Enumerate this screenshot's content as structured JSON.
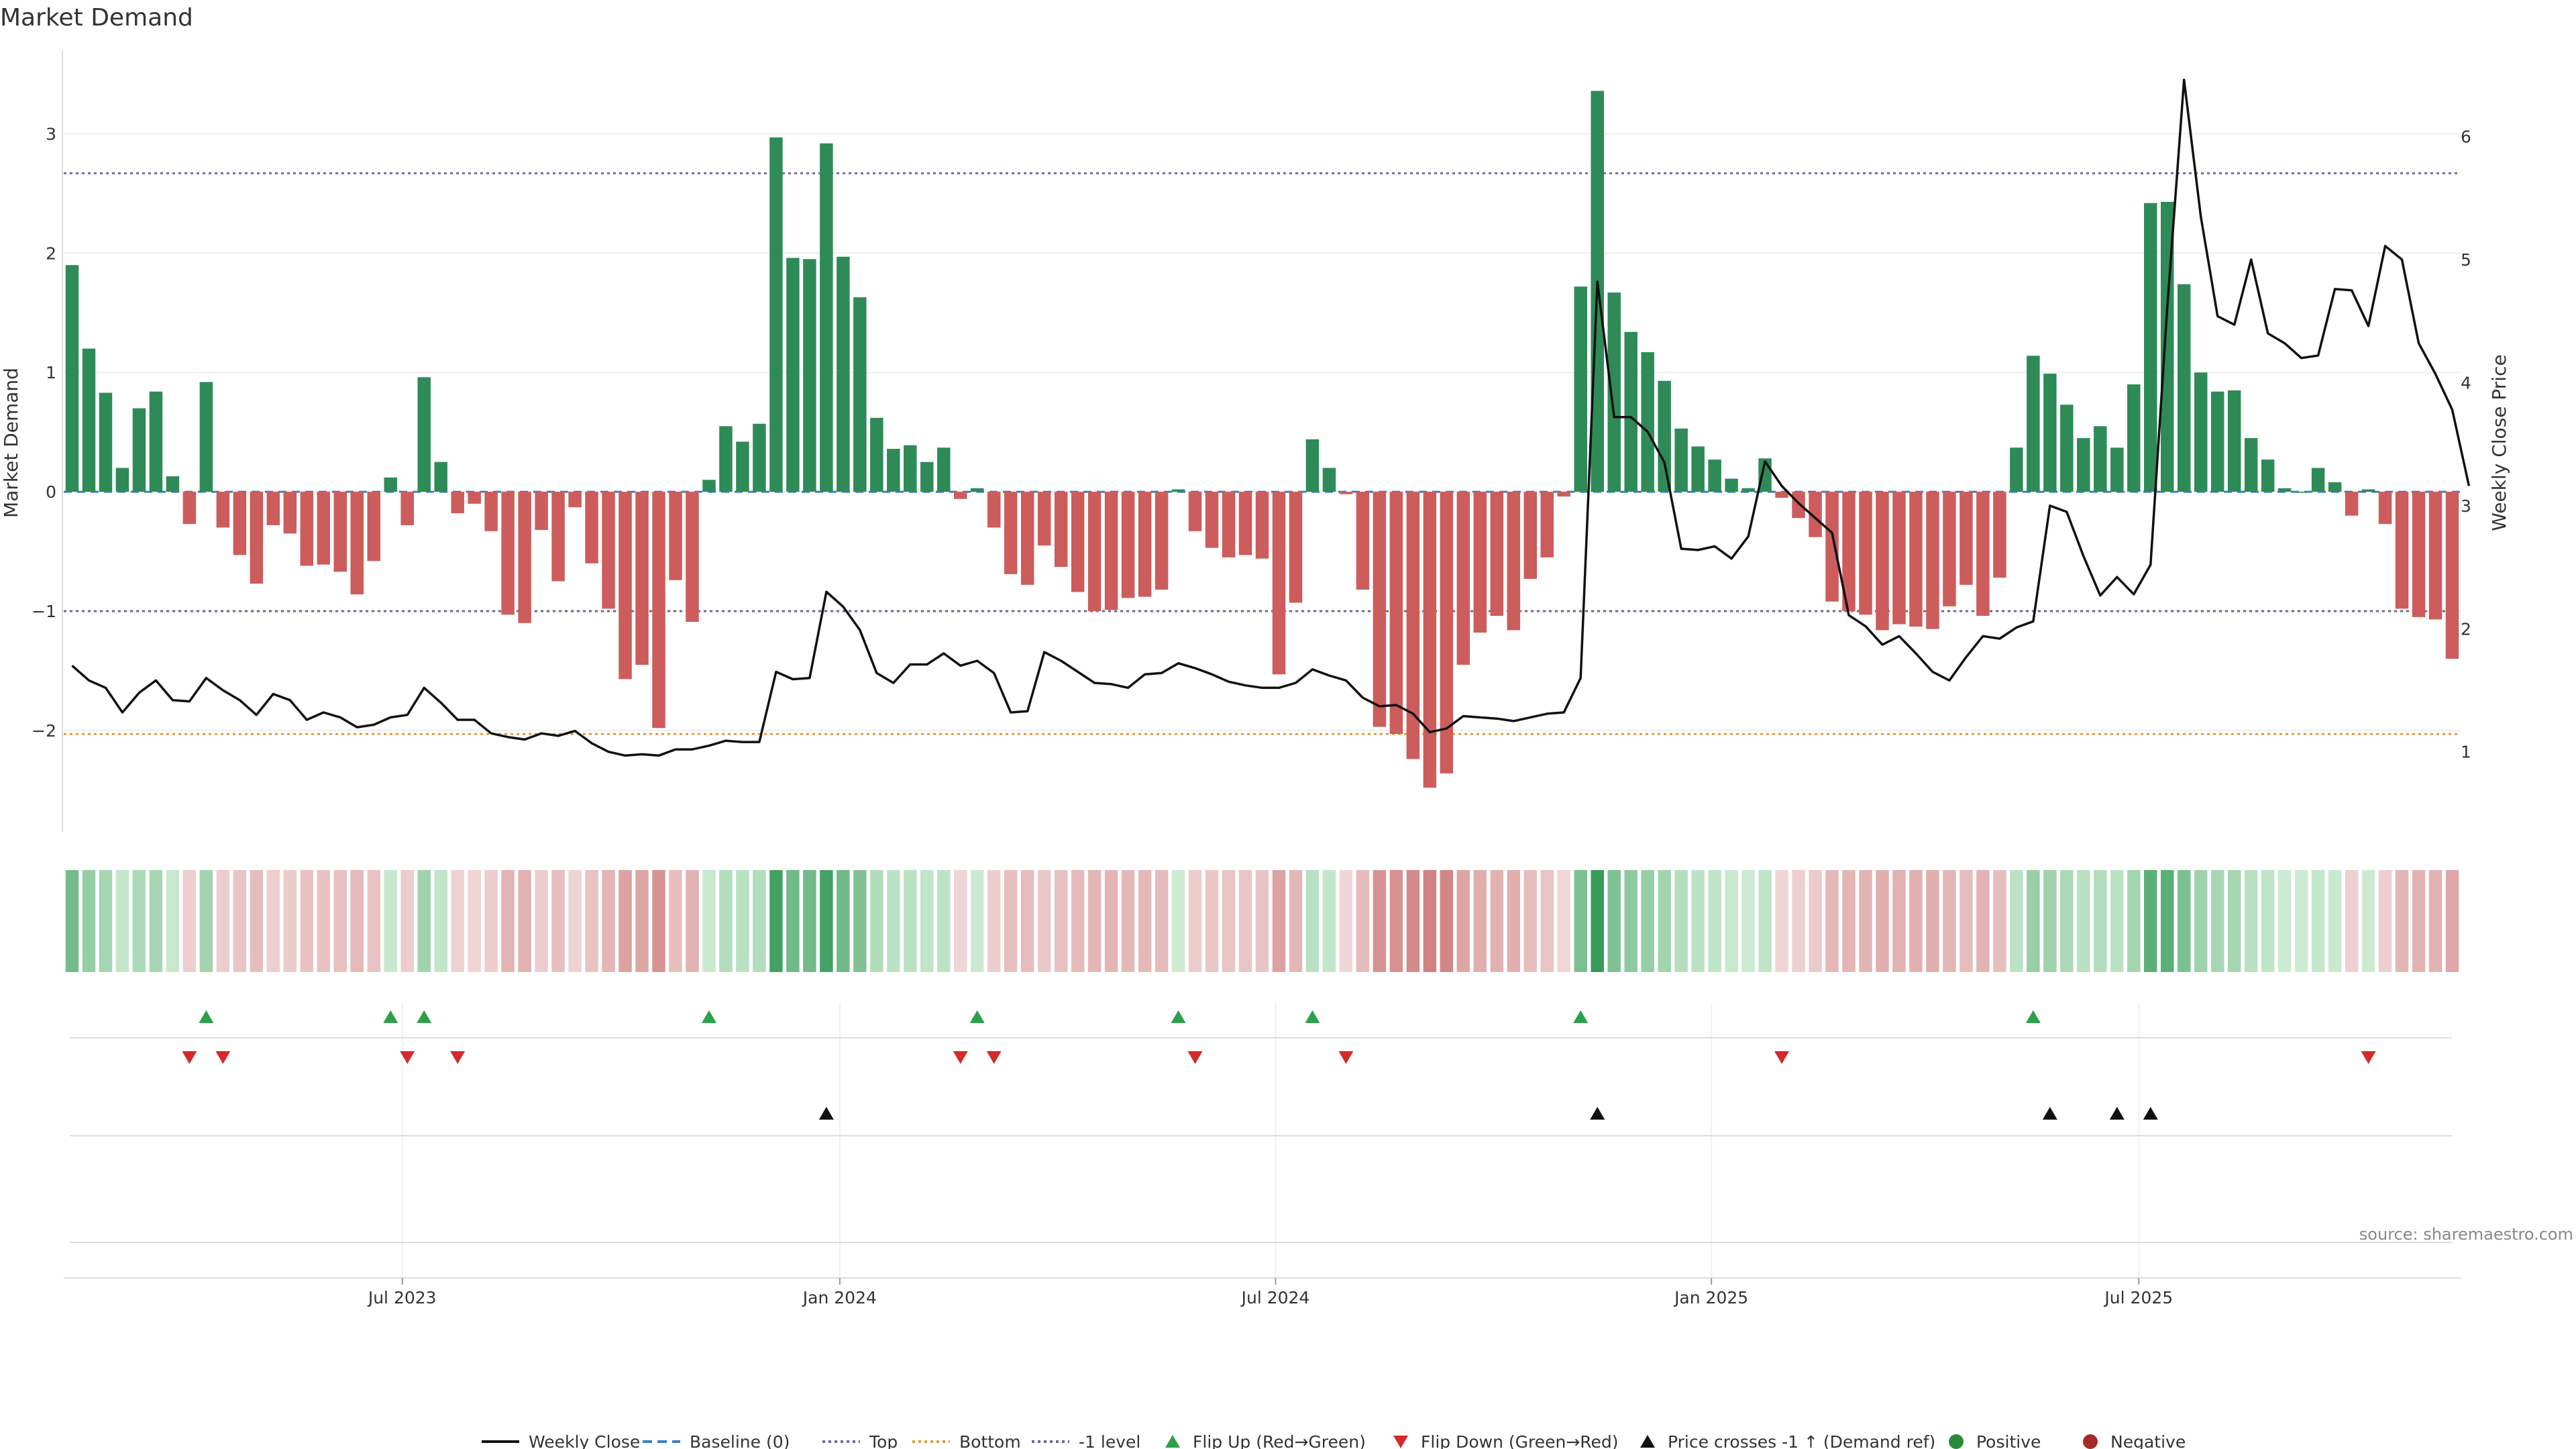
{
  "chart_data": {
    "type": "bar",
    "title": "Market Demand",
    "ylabel_left": "Market Demand",
    "ylabel_right": "Weekly Close Price",
    "ylim_left": [
      -2.85,
      3.7
    ],
    "ylim_right": [
      0.35,
      6.7
    ],
    "left_ticks": [
      "−2",
      "−1",
      "0",
      "1",
      "2",
      "3"
    ],
    "right_ticks": [
      "1",
      "2",
      "3",
      "4",
      "5",
      "6"
    ],
    "x_tick_labels": [
      "Jul 2023",
      "Jan 2024",
      "Jul 2024",
      "Jan 2025",
      "Jul 2025"
    ],
    "reference_lines": {
      "top": 2.67,
      "bottom": -2.03,
      "minus_one_level": -1.0,
      "baseline": 0
    },
    "series": [
      {
        "name": "Market Demand",
        "values": [
          1.9,
          1.2,
          0.83,
          0.2,
          0.7,
          0.84,
          0.13,
          -0.27,
          0.92,
          -0.3,
          -0.53,
          -0.77,
          -0.28,
          -0.35,
          -0.62,
          -0.61,
          -0.67,
          -0.86,
          -0.58,
          0.12,
          -0.28,
          0.96,
          0.25,
          -0.18,
          -0.1,
          -0.33,
          -1.03,
          -1.1,
          -0.32,
          -0.75,
          -0.13,
          -0.6,
          -0.98,
          -1.57,
          -1.45,
          -1.98,
          -0.74,
          -1.09,
          0.1,
          0.55,
          0.42,
          0.57,
          2.97,
          1.96,
          1.95,
          2.92,
          1.97,
          1.63,
          0.62,
          0.36,
          0.39,
          0.25,
          0.37,
          -0.06,
          0.03,
          -0.3,
          -0.69,
          -0.78,
          -0.45,
          -0.63,
          -0.84,
          -1.0,
          -0.99,
          -0.89,
          -0.88,
          -0.82,
          0.02,
          -0.33,
          -0.47,
          -0.55,
          -0.53,
          -0.56,
          -1.53,
          -0.93,
          0.44,
          0.2,
          -0.02,
          -0.82,
          -1.97,
          -2.03,
          -2.24,
          -2.48,
          -2.36,
          -1.45,
          -1.18,
          -1.04,
          -1.16,
          -0.73,
          -0.55,
          -0.04,
          1.72,
          3.36,
          1.67,
          1.34,
          1.17,
          0.93,
          0.53,
          0.38,
          0.27,
          0.11,
          0.03,
          0.28,
          -0.05,
          -0.22,
          -0.38,
          -0.92,
          -1.0,
          -1.03,
          -1.16,
          -1.11,
          -1.13,
          -1.15,
          -0.96,
          -0.78,
          -1.04,
          -0.72,
          0.37,
          1.14,
          0.99,
          0.73,
          0.45,
          0.55,
          0.37,
          0.9,
          2.42,
          2.43,
          1.74,
          1.0,
          0.84,
          0.85,
          0.45,
          0.27,
          0.03,
          0.0,
          0.2,
          0.08,
          -0.2,
          0.02,
          -0.27,
          -0.98,
          -1.05,
          -1.07,
          -1.4
        ]
      },
      {
        "name": "Weekly Close",
        "values": [
          1.7,
          1.58,
          1.52,
          1.32,
          1.48,
          1.58,
          1.42,
          1.41,
          1.6,
          1.5,
          1.42,
          1.3,
          1.47,
          1.42,
          1.26,
          1.32,
          1.28,
          1.2,
          1.22,
          1.28,
          1.3,
          1.52,
          1.4,
          1.26,
          1.26,
          1.15,
          1.12,
          1.1,
          1.15,
          1.13,
          1.17,
          1.07,
          1.0,
          0.97,
          0.98,
          0.97,
          1.02,
          1.02,
          1.05,
          1.09,
          1.08,
          1.08,
          1.65,
          1.59,
          1.6,
          2.3,
          2.18,
          1.99,
          1.64,
          1.56,
          1.71,
          1.71,
          1.8,
          1.7,
          1.74,
          1.64,
          1.32,
          1.33,
          1.81,
          1.74,
          1.65,
          1.56,
          1.55,
          1.52,
          1.63,
          1.64,
          1.72,
          1.68,
          1.63,
          1.57,
          1.54,
          1.52,
          1.52,
          1.56,
          1.67,
          1.62,
          1.58,
          1.44,
          1.37,
          1.38,
          1.31,
          1.16,
          1.19,
          1.29,
          1.28,
          1.27,
          1.25,
          1.28,
          1.31,
          1.32,
          1.6,
          4.82,
          3.72,
          3.72,
          3.6,
          3.35,
          2.65,
          2.64,
          2.67,
          2.57,
          2.75,
          3.36,
          3.16,
          3.02,
          2.9,
          2.78,
          2.11,
          2.02,
          1.87,
          1.94,
          1.8,
          1.65,
          1.58,
          1.77,
          1.94,
          1.92,
          2.01,
          2.06,
          3.0,
          2.95,
          2.59,
          2.27,
          2.42,
          2.28,
          2.52,
          4.61,
          6.46,
          5.35,
          4.54,
          4.47,
          5.0,
          4.4,
          4.32,
          4.2,
          4.22,
          4.76,
          4.75,
          4.46,
          5.11,
          5.0,
          4.32,
          4.07,
          3.78,
          3.16
        ]
      }
    ],
    "markers": {
      "flip_up_index": [
        8,
        19,
        21,
        38,
        54,
        66,
        74,
        90,
        117
      ],
      "flip_down_index": [
        7,
        9,
        20,
        23,
        53,
        55,
        67,
        76,
        102,
        137
      ],
      "price_cross_index": [
        45,
        91,
        118,
        122,
        124
      ]
    },
    "legend_position": "bottom-center"
  },
  "legend": [
    {
      "label": "Weekly Close",
      "kind": "line",
      "color": "#111111"
    },
    {
      "label": "Baseline (0)",
      "kind": "dash",
      "color": "#3a7fc4"
    },
    {
      "label": "Top",
      "kind": "dot",
      "color": "#6a6aa8"
    },
    {
      "label": "Bottom",
      "kind": "dot",
      "color": "#e09a3a"
    },
    {
      "label": "-1 level",
      "kind": "dot",
      "color": "#6a6a8a"
    },
    {
      "label": "Flip Up (Red→Green)",
      "kind": "tri-up",
      "color": "#2ea04a"
    },
    {
      "label": "Flip Down (Green→Red)",
      "kind": "tri-down",
      "color": "#d42a2a"
    },
    {
      "label": "Price crosses -1 ↑ (Demand ref)",
      "kind": "tri-up",
      "color": "#111111"
    },
    {
      "label": "Positive",
      "kind": "circle",
      "color": "#2a8a3a"
    },
    {
      "label": "Negative",
      "kind": "circle",
      "color": "#a62a2a"
    }
  ],
  "source": "source: sharemaestro.com",
  "colors": {
    "positive": "#2e8b57",
    "negative": "#cd5c5c",
    "price": "#111111"
  }
}
